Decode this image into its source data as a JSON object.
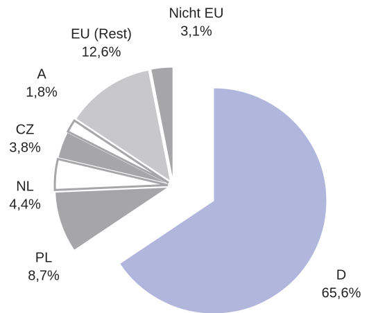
{
  "chart_data": {
    "type": "pie",
    "categories": [
      "D",
      "PL",
      "NL",
      "CZ",
      "A",
      "EU (Rest)",
      "Nicht EU"
    ],
    "values": [
      65.6,
      8.7,
      4.4,
      3.8,
      1.8,
      12.6,
      3.1
    ],
    "value_labels": [
      "65,6%",
      "8,7%",
      "4,4%",
      "3,8%",
      "1,8%",
      "12,6%",
      "3,1%"
    ],
    "colors": [
      "#b0b6dc",
      "#a6a6a8",
      "#ffffff",
      "#a6a6a8",
      "#ffffff",
      "#c8c8ca",
      "#a6a6a8"
    ]
  }
}
